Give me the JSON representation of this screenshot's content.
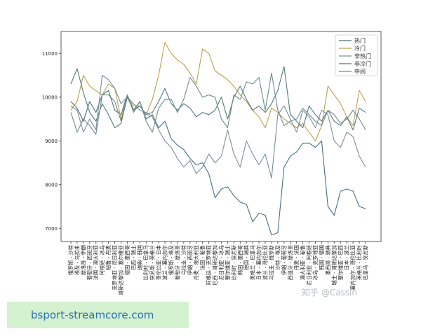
{
  "banner": {
    "text": "bsport-streamcore.com"
  },
  "watermark": {
    "text": "知乎 @Cassin"
  },
  "chart_data": {
    "type": "line",
    "title": "",
    "xlabel": "",
    "ylabel": "",
    "ylim": [
      6700,
      11500
    ],
    "yticks": [
      7000,
      8000,
      9000,
      10000,
      11000
    ],
    "grid": false,
    "legend_position": "top-right",
    "categories": [
      "俄罗斯 - 沙特",
      "埃及 - 乌拉圭",
      "摩洛哥 - 伊朗",
      "葡萄牙 - 西班牙",
      "法国 - 澳大利亚",
      "阿根廷 - 冰岛",
      "秘鲁 - 丹麦",
      "克罗地亚 - 尼日利亚",
      "哥斯达黎加 - 塞尔维亚",
      "德国 - 墨西哥",
      "巴西 - 瑞士",
      "瑞典 - 韩国",
      "比利时 - 巴拿马",
      "突尼斯 - 英格兰",
      "哥伦比亚 - 日本",
      "波兰 - 塞内加尔",
      "俄罗斯 - 埃及",
      "葡萄牙 - 摩洛哥",
      "乌拉圭 - 沙特",
      "伊朗 - 西班牙",
      "丹麦 - 澳大利亚",
      "法国 - 秘鲁",
      "阿根廷 - 克罗地亚",
      "巴西 - 哥斯达黎加",
      "尼日利亚 - 冰岛",
      "塞尔维亚 - 瑞士",
      "比利时 - 突尼斯",
      "韩国 - 墨西哥",
      "德国 - 瑞典",
      "英格兰 - 巴拿马",
      "日本 - 塞内加尔",
      "波兰 - 哥伦比亚",
      "乌拉圭 - 俄罗斯",
      "沙特 - 埃及",
      "伊朗 - 葡萄牙",
      "西班牙 - 摩洛哥",
      "丹麦 - 法国",
      "澳大利亚 - 秘鲁",
      "尼日利亚 - 阿根廷",
      "冰岛 - 克罗地亚",
      "韩国 - 德国",
      "墨西哥 - 瑞典",
      "瑞士 - 哥斯达黎加",
      "塞尔维亚 - 巴西",
      "日本 - 波兰",
      "塞内加尔 - 哥伦比亚",
      "英格兰 - 比利时",
      "巴拿马 - 突尼斯"
    ],
    "series": [
      {
        "name": "热门",
        "color": "#4a6e7e",
        "values": [
          9900,
          9750,
          9450,
          9900,
          9650,
          10050,
          10150,
          9700,
          9600,
          10050,
          9700,
          9900,
          9500,
          9600,
          9300,
          9450,
          9050,
          8900,
          8800,
          8600,
          8450,
          8500,
          8250,
          7700,
          7900,
          7950,
          7750,
          7600,
          7550,
          7150,
          7350,
          7300,
          6850,
          6900,
          8400,
          8650,
          8750,
          8950,
          8950,
          8850,
          9000,
          7500,
          7300,
          7850,
          7900,
          7850,
          7500,
          7450
        ]
      },
      {
        "name": "冷门",
        "color": "#b7a34c",
        "values": [
          9700,
          9900,
          10500,
          10250,
          10150,
          10050,
          10300,
          10200,
          9500,
          10000,
          9800,
          9800,
          9600,
          9950,
          10500,
          11250,
          11000,
          10850,
          10750,
          10550,
          10300,
          11100,
          11000,
          10600,
          10500,
          10400,
          10250,
          10050,
          9900,
          9700,
          9550,
          9300,
          9750,
          9650,
          9500,
          9400,
          9300,
          9400,
          9200,
          9000,
          9350,
          10250,
          10050,
          9850,
          9550,
          9350,
          10150,
          9900
        ]
      },
      {
        "name": "非热门",
        "color": "#7a8e9a",
        "values": [
          9800,
          9700,
          9200,
          9500,
          9250,
          10500,
          10400,
          10200,
          9850,
          10000,
          9850,
          9700,
          9650,
          9550,
          9250,
          9000,
          8850,
          8600,
          8400,
          8550,
          8250,
          8400,
          8700,
          8500,
          8650,
          9250,
          8700,
          8400,
          9000,
          8700,
          8450,
          8700,
          8150,
          9600,
          9800,
          9500,
          9200,
          9700,
          9550,
          9300,
          9700,
          9600,
          9000,
          8850,
          9200,
          9100,
          8650,
          8400
        ]
      },
      {
        "name": "非冷门",
        "color": "#52787a",
        "values": [
          10300,
          10650,
          10100,
          9650,
          9450,
          9850,
          9600,
          9300,
          9400,
          10000,
          9700,
          9800,
          9600,
          9650,
          9900,
          10200,
          9850,
          9700,
          9850,
          9750,
          9550,
          9650,
          9600,
          9700,
          10000,
          9500,
          10000,
          10250,
          9950,
          9700,
          9800,
          9650,
          9850,
          10150,
          10700,
          9600,
          9450,
          9300,
          9800,
          9600,
          9450,
          9700,
          9450,
          9350,
          9550,
          9250,
          9750,
          9650
        ]
      },
      {
        "name": "中间",
        "color": "#6f8c8a",
        "values": [
          9650,
          9200,
          9500,
          9350,
          9150,
          10050,
          10050,
          9900,
          9450,
          10050,
          9650,
          9900,
          9450,
          9200,
          9750,
          9950,
          9950,
          9650,
          9950,
          10450,
          10250,
          10000,
          10050,
          10000,
          9500,
          9300,
          10050,
          9950,
          10350,
          10300,
          10450,
          9700,
          10550,
          9700,
          9350,
          9450,
          9500,
          9750,
          9600,
          9450,
          9350,
          9700,
          9600,
          9400,
          9500,
          9700,
          9500,
          9250
        ]
      }
    ]
  }
}
